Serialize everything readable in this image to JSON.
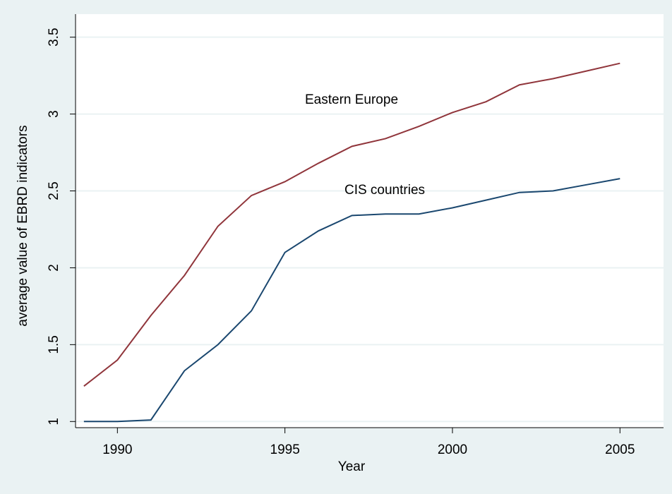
{
  "chart_data": {
    "type": "line",
    "x": [
      1989,
      1990,
      1991,
      1992,
      1993,
      1994,
      1995,
      1996,
      1997,
      1998,
      1999,
      2000,
      2001,
      2002,
      2003,
      2004,
      2005
    ],
    "series": [
      {
        "name": "Eastern Europe",
        "color": "#90353b",
        "values": [
          1.23,
          1.4,
          1.69,
          1.95,
          2.27,
          2.47,
          2.56,
          2.68,
          2.79,
          2.84,
          2.92,
          3.01,
          3.08,
          3.19,
          3.23,
          3.28,
          3.33
        ]
      },
      {
        "name": "CIS countries",
        "color": "#1a476f",
        "values": [
          1.0,
          1.0,
          1.01,
          1.33,
          1.5,
          1.72,
          2.1,
          2.24,
          2.34,
          2.35,
          2.35,
          2.39,
          2.44,
          2.49,
          2.5,
          2.54,
          2.58
        ]
      }
    ],
    "x_label": "Year",
    "y_label": "average value of EBRD indicators",
    "xlim": [
      1988.75,
      2006.3
    ],
    "xticks": [
      1990,
      1995,
      2000,
      2005
    ],
    "ylim": [
      0.96,
      3.65
    ],
    "yticks": [
      1,
      1.5,
      2,
      2.5,
      3,
      3.5
    ],
    "grid": true
  }
}
